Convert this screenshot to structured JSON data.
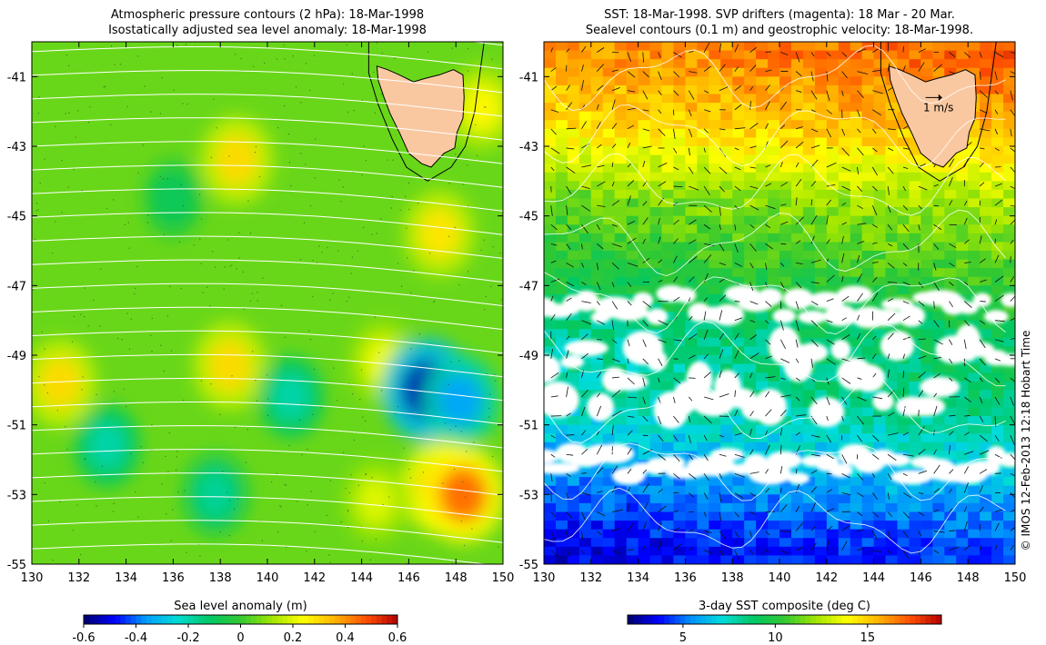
{
  "credit": "© IMOS 12-Feb-2013 12:18 Hobart Time",
  "chart_data": [
    {
      "type": "heatmap",
      "title": "Atmospheric pressure contours (2 hPa): 18-Mar-1998",
      "subtitle": "Isostatically adjusted sea level anomaly: 18-Mar-1998",
      "xlim": [
        130,
        150
      ],
      "ylim": [
        -55,
        -40
      ],
      "x_ticks": [
        130,
        132,
        134,
        136,
        138,
        140,
        142,
        144,
        146,
        148,
        150
      ],
      "y_ticks": [
        -41,
        -43,
        -45,
        -47,
        -49,
        -51,
        -53,
        -55
      ],
      "colorbar": {
        "label": "Sea level anomaly (m)",
        "range": [
          -0.6,
          0.6
        ],
        "ticks": [
          -0.6,
          -0.4,
          -0.2,
          0,
          0.2,
          0.4,
          0.6
        ],
        "colors": [
          "#00006e",
          "#0000ff",
          "#00a0ff",
          "#00dcd2",
          "#00c864",
          "#32c832",
          "#a0e600",
          "#ffff00",
          "#ffb400",
          "#ff5000",
          "#b40000"
        ]
      },
      "background_value": 0.06,
      "features": [
        {
          "lon": 138.7,
          "lat": -43.4,
          "value": 0.3
        },
        {
          "lon": 147.3,
          "lat": -45.5,
          "value": 0.28
        },
        {
          "lon": 131.2,
          "lat": -49.8,
          "value": 0.3
        },
        {
          "lon": 138.4,
          "lat": -49.3,
          "value": 0.3
        },
        {
          "lon": 144.9,
          "lat": -49.2,
          "value": 0.22
        },
        {
          "lon": 146.8,
          "lat": -50.0,
          "value": -0.55
        },
        {
          "lon": 148.2,
          "lat": -50.3,
          "value": -0.35
        },
        {
          "lon": 147.4,
          "lat": -52.8,
          "value": 0.4
        },
        {
          "lon": 148.3,
          "lat": -53.0,
          "value": 0.45
        },
        {
          "lon": 141.0,
          "lat": -50.2,
          "value": -0.2
        },
        {
          "lon": 133.2,
          "lat": -51.6,
          "value": -0.2
        },
        {
          "lon": 137.8,
          "lat": -53.0,
          "value": -0.18
        },
        {
          "lon": 149.1,
          "lat": -41.9,
          "value": 0.25
        },
        {
          "lon": 136.0,
          "lat": -44.5,
          "value": -0.1
        },
        {
          "lon": 144.6,
          "lat": -53.2,
          "value": 0.2
        }
      ]
    },
    {
      "type": "heatmap",
      "title": "SST: 18-Mar-1998. SVP drifters (magenta): 18 Mar - 20 Mar.",
      "subtitle": "Sealevel contours (0.1 m) and geostrophic velocity: 18-Mar-1998.",
      "xlim": [
        130,
        150
      ],
      "ylim": [
        -55,
        -40
      ],
      "x_ticks": [
        130,
        132,
        134,
        136,
        138,
        140,
        142,
        144,
        146,
        148,
        150
      ],
      "y_ticks": [
        -41,
        -43,
        -45,
        -47,
        -49,
        -51,
        -53,
        -55
      ],
      "vector_scale_label": "1 m/s",
      "colorbar": {
        "label": "3-day SST composite (deg C)",
        "range": [
          2,
          19
        ],
        "ticks": [
          5,
          10,
          15
        ],
        "colors": [
          "#00006e",
          "#0000ff",
          "#0090ff",
          "#00dcdc",
          "#00c864",
          "#32c832",
          "#a0e600",
          "#ffff00",
          "#ffb400",
          "#ff5000",
          "#b40000"
        ]
      },
      "sst_by_latitude": [
        {
          "lat": -40.5,
          "value": 16.5
        },
        {
          "lat": -42.5,
          "value": 15
        },
        {
          "lat": -44.5,
          "value": 12
        },
        {
          "lat": -46.5,
          "value": 10.5
        },
        {
          "lat": -48.5,
          "value": 8.5
        },
        {
          "lat": -50.5,
          "value": 8
        },
        {
          "lat": -52.5,
          "value": 6
        },
        {
          "lat": -54.5,
          "value": 4
        }
      ],
      "cloud_bands": [
        {
          "lat": -49.6,
          "width": 1.3
        },
        {
          "lat": -47.6,
          "width": 0.5
        },
        {
          "lat": -52.2,
          "width": 0.5
        }
      ]
    }
  ]
}
